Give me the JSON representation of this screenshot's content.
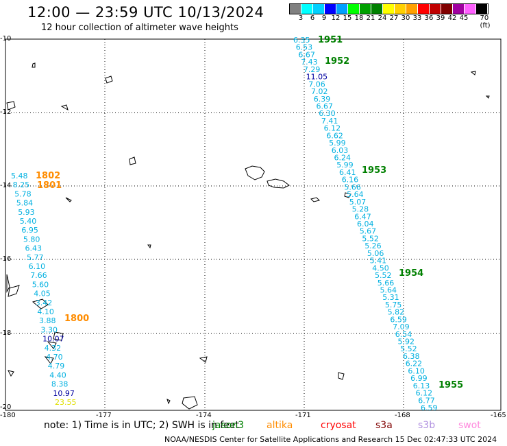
{
  "title": "12:00 — 23:59 UTC 10/13/2024",
  "subtitle": "12 hour collection of altimeter wave heights",
  "colorbar": {
    "colors": [
      "#808080",
      "#00ffff",
      "#00d0ff",
      "#0000ff",
      "#00a0ff",
      "#00ff00",
      "#00a000",
      "#008000",
      "#ffff00",
      "#ffd000",
      "#ffa000",
      "#ff0000",
      "#c00000",
      "#800000",
      "#a000a0",
      "#ff60ff",
      "#000000"
    ],
    "labels": [
      "3",
      "6",
      "9",
      "12",
      "15",
      "18",
      "21",
      "24",
      "27",
      "30",
      "33",
      "36",
      "39",
      "42",
      "45",
      "70 (ft)"
    ]
  },
  "axes": {
    "x_labels": [
      "-180",
      "-177",
      "-174",
      "-171",
      "-168",
      "-165"
    ],
    "y_labels": [
      "-10",
      "-12",
      "-14",
      "-16",
      "-18",
      "-20"
    ]
  },
  "tracks": [
    {
      "id": "1951",
      "color": "#008000"
    },
    {
      "id": "1952",
      "color": "#008000"
    },
    {
      "id": "1953",
      "color": "#008000"
    },
    {
      "id": "1954",
      "color": "#008000"
    },
    {
      "id": "1955",
      "color": "#008000"
    },
    {
      "id": "1802",
      "color": "#ff8c00"
    },
    {
      "id": "1801",
      "color": "#ff8c00"
    },
    {
      "id": "1800",
      "color": "#ff8c00"
    }
  ],
  "swh_east": [
    "6.35",
    "6.53",
    "6.67",
    "7.43",
    "7.29",
    "11.05",
    "7.06",
    "7.02",
    "6.39",
    "6.67",
    "6.30",
    "7.41",
    "6.12",
    "6.62",
    "5.99",
    "6.03",
    "6.24",
    "5.99",
    "6.41",
    "6.16",
    "5.66",
    "5.64",
    "5.07",
    "5.28",
    "6.47",
    "6.04",
    "5.67",
    "5.52",
    "5.26",
    "5.06",
    "5.41",
    "4.50",
    "5.52",
    "5.66",
    "5.64",
    "5.31",
    "5.75",
    "5.82",
    "6.59",
    "7.09",
    "6.54",
    "5.92",
    "5.52",
    "6.38",
    "6.22",
    "6.10",
    "6.99",
    "6.13",
    "6.12",
    "6.77",
    "6.59"
  ],
  "swh_west": [
    "5.48",
    "8.25",
    "5.78",
    "5.84",
    "5.93",
    "5.40",
    "6.95",
    "5.80",
    "6.43",
    "5.77",
    "6.10",
    "7.66",
    "5.60",
    "4.05",
    "3.42",
    "4.10",
    "3.88",
    "3.30",
    "10.07",
    "4.32",
    "4.70",
    "4.79",
    "4.40",
    "8.38",
    "10.97",
    "23.55"
  ],
  "note": "note: 1) Time is in UTC; 2) SWH is in feet",
  "legend": [
    {
      "name": "jason3",
      "color": "#008000"
    },
    {
      "name": "altika",
      "color": "#ff8c00"
    },
    {
      "name": "cryosat",
      "color": "#ff0000"
    },
    {
      "name": "s3a",
      "color": "#800000"
    },
    {
      "name": "s3b",
      "color": "#b090e0"
    },
    {
      "name": "swot",
      "color": "#ff88dd"
    }
  ],
  "credit": "NOAA/NESDIS Center for Satellite Applications and Research   15 Dec 02:47:33 UTC 2024"
}
